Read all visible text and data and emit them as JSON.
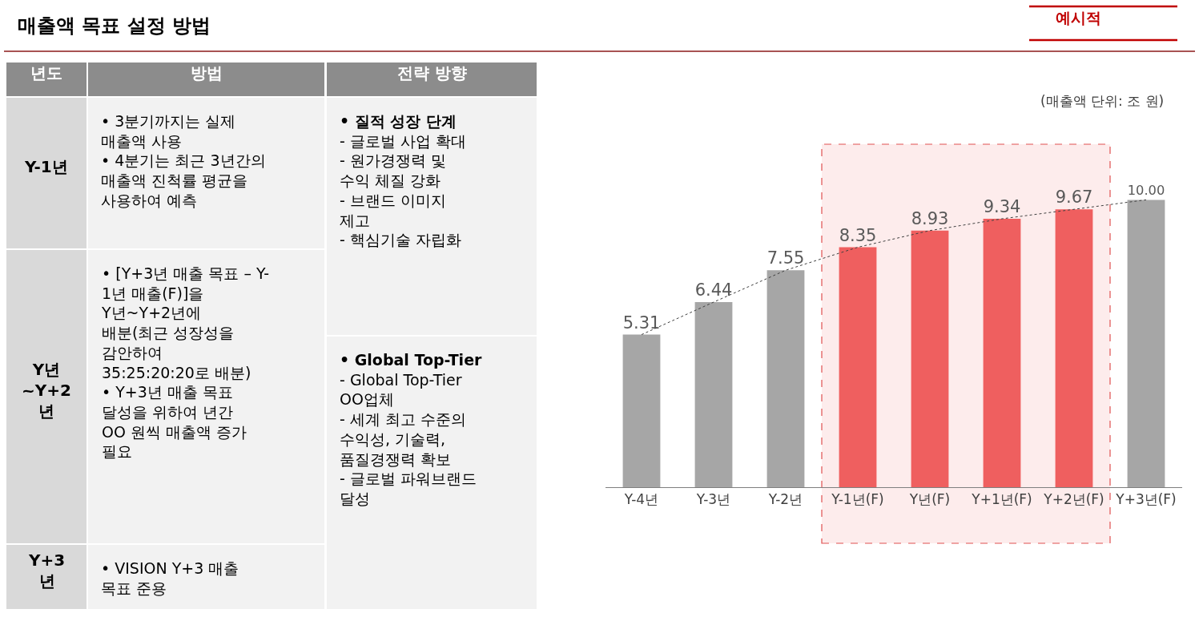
{
  "chart_data": [
    {
      "type": "other",
      "title": "매출액 목표 설정 방법",
      "annotations": [
        "예시적",
        "년도",
        "방법",
        "전략 방향",
        "Y-1년",
        "• 3분기까지는 실제\n매출액 사용\n• 4분기는 최근 3년간의\n매출액 진척률 평균을\n사용하여 예측",
        "• 질적 성장 단계\n- 글로벌 사업 확대\n- 원가경쟁력 및\n수익 체질 강화\n- 브랜드 이미지\n제고\n- 핵심기술 자립화",
        "Y년\n~Y+2\n년",
        "• [Y+3년 매출 목표 – Y-\n1년 매출(F)]을\nY년~Y+2년에\n배분(최근 성장성을\n감안하여\n35:25:20:20로 배분)\n• Y+3년 매출 목표\n달성을 위하여 년간\nOO 원씩 매출액 증가\n필요",
        "• Global Top-Tier\n- Global Top-Tier\nOO업체\n- 세계 최고 수준의\n수익성, 기술력,\n품질경쟁력 확보\n- 글로벌 파워브랜드\n달성",
        "Y+3\n년",
        "• VISION Y+3 매출\n목표 준용"
      ]
    },
    {
      "type": "bar",
      "categories": [
        "Y-4년",
        "Y-3년",
        "Y-2년",
        "Y-1년(F)",
        "Y년(F)",
        "Y+1년(F)",
        "Y+2년(F)",
        "Y+3년(F)"
      ],
      "series": [
        {
          "type": "bar",
          "colors": [
            "#a6a6a6",
            "#a6a6a6",
            "#a6a6a6",
            "#ef5f5f",
            "#ef5f5f",
            "#ef5f5f",
            "#ef5f5f",
            "#a6a6a6"
          ],
          "values": [
            5.31,
            6.44,
            7.55,
            8.35,
            8.93,
            9.34,
            9.67,
            10.0
          ],
          "value_labels": [
            "5.31",
            "6.44",
            "7.55",
            "8.35",
            "8.93",
            "9.34",
            "9.67",
            "10.00"
          ]
        },
        {
          "type": "line",
          "color": "#404040",
          "line_style": "dotted",
          "marker": "none",
          "values": [
            5.31,
            6.44,
            7.55,
            8.35,
            8.93,
            9.34,
            9.67,
            10.0
          ]
        }
      ],
      "bands": [
        {
          "axis": "x",
          "from": "Y-1년(F)",
          "to": "Y+2년(F)",
          "color": "#fdecec"
        }
      ],
      "annotations": [
        "(매출액 단위: 조 원)"
      ]
    }
  ]
}
